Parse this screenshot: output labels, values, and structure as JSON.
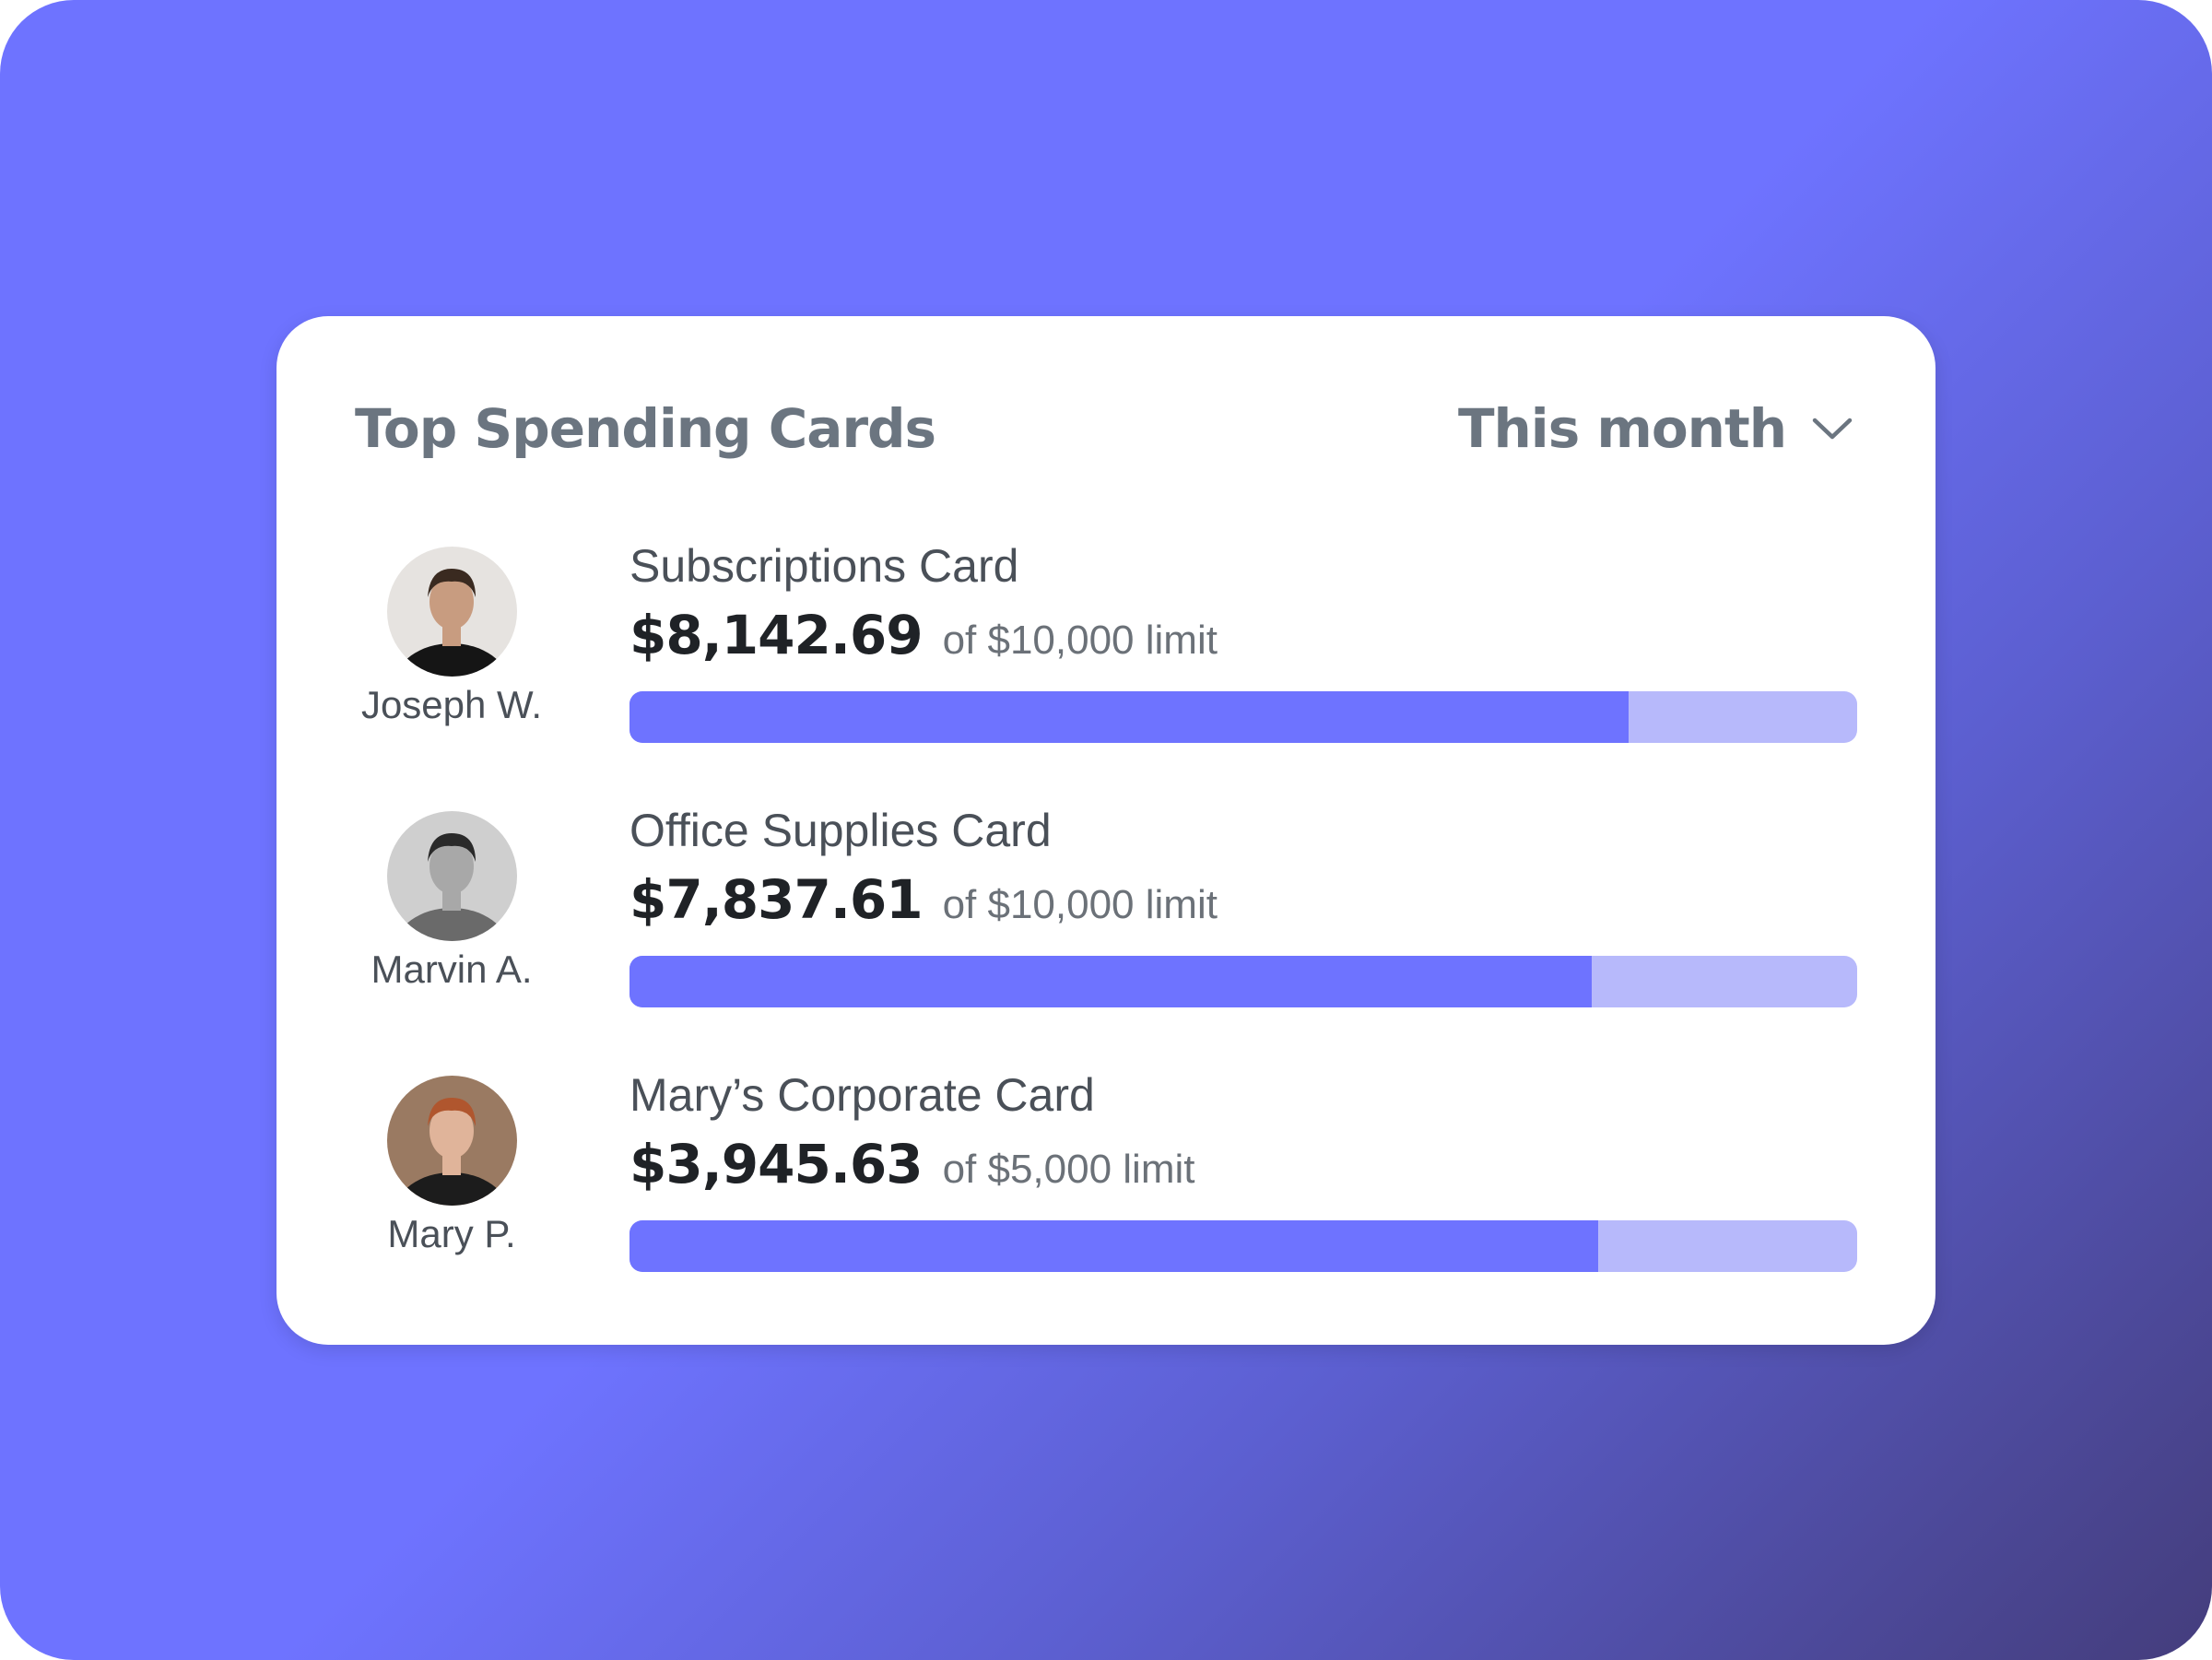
{
  "header": {
    "title": "Top Spending Cards",
    "period": "This month"
  },
  "colors": {
    "accent": "#6e73ff",
    "track": "#b7b9fb"
  },
  "rows": [
    {
      "person": "Joseph W.",
      "card": "Subscriptions Card",
      "amount": "$8,142.69",
      "limit": "of $10,000 limit",
      "progress": 0.814,
      "avatar": {
        "bg": "#e6e3e0",
        "skin": "#c89c80",
        "hair": "#3a2a20",
        "shirt": "#151515"
      }
    },
    {
      "person": "Marvin A.",
      "card": "Office Supplies Card",
      "amount": "$7,837.61",
      "limit": "of $10,000 limit",
      "progress": 0.784,
      "avatar": {
        "bg": "#cfcfcf",
        "skin": "#a8a8a8",
        "hair": "#2a2a2a",
        "shirt": "#6a6a6a"
      }
    },
    {
      "person": "Mary P.",
      "card": "Mary’s Corporate Card",
      "amount": "$3,945.63",
      "limit": "of $5,000 limit",
      "progress": 0.789,
      "avatar": {
        "bg": "#9a7a62",
        "skin": "#e0b49a",
        "hair": "#b0562e",
        "shirt": "#1c1c1c"
      }
    }
  ]
}
